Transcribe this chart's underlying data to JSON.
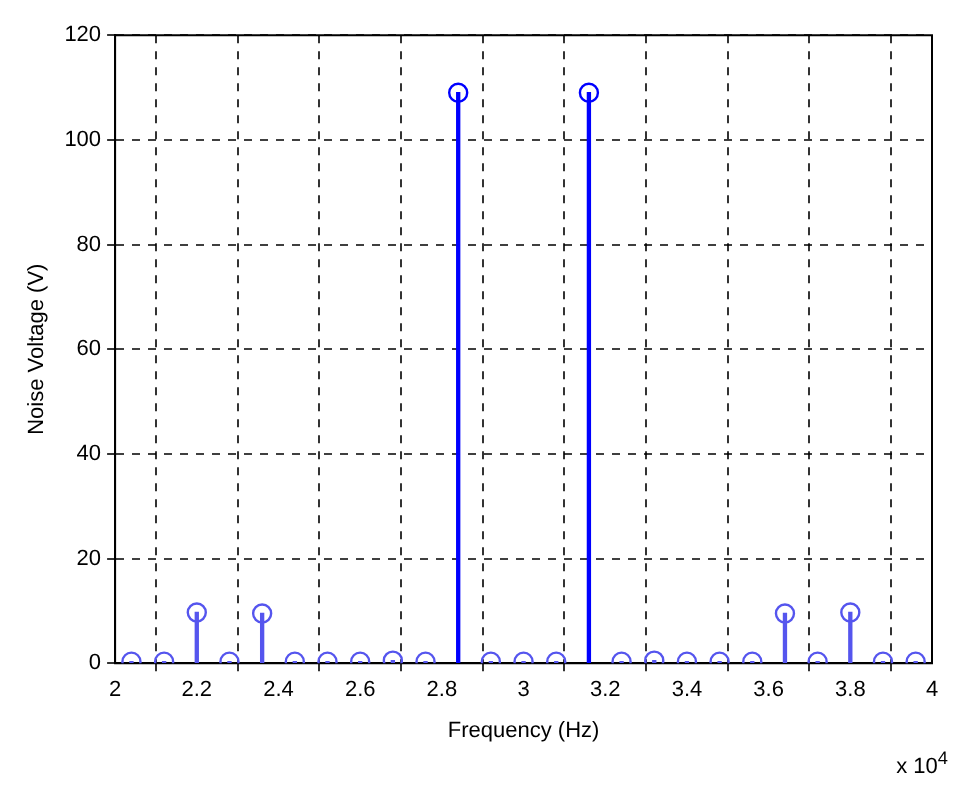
{
  "chart_data": {
    "type": "lollipop",
    "xlabel": "Frequency (Hz)",
    "ylabel": "Noise Voltage (V)",
    "x": [
      2.04,
      2.12,
      2.2,
      2.28,
      2.36,
      2.44,
      2.52,
      2.6,
      2.68,
      2.76,
      2.84,
      2.92,
      3.0,
      3.08,
      3.16,
      3.24,
      3.32,
      3.4,
      3.48,
      3.56,
      3.64,
      3.72,
      3.8,
      3.88,
      3.96
    ],
    "values": [
      0.3,
      0.3,
      9.7,
      0.3,
      9.5,
      0.3,
      0.3,
      0.3,
      0.5,
      0.3,
      109,
      0.3,
      0.3,
      0.3,
      109,
      0.3,
      0.5,
      0.3,
      0.3,
      0.3,
      9.5,
      0.3,
      9.7,
      0.3,
      0.3
    ],
    "colors": [
      "#5555ee",
      "#5555ee",
      "#5555ee",
      "#5555ee",
      "#5555ee",
      "#5555ee",
      "#5555ee",
      "#5555ee",
      "#5555ee",
      "#5555ee",
      "#0000ff",
      "#5555ee",
      "#5555ee",
      "#5555ee",
      "#0000ff",
      "#5555ee",
      "#5555ee",
      "#5555ee",
      "#5555ee",
      "#5555ee",
      "#5555ee",
      "#5555ee",
      "#5555ee",
      "#5555ee",
      "#5555ee"
    ],
    "marker": "circle",
    "xlim": [
      2,
      4
    ],
    "xticks": [
      2,
      2.2,
      2.4,
      2.6,
      2.8,
      3,
      3.2,
      3.4,
      3.6,
      3.8,
      4
    ],
    "ylim": [
      0,
      120
    ],
    "yticks": [
      0,
      20,
      40,
      60,
      80,
      100,
      120
    ],
    "grid": true,
    "annotations": [
      "x 10$^{4}$"
    ]
  }
}
